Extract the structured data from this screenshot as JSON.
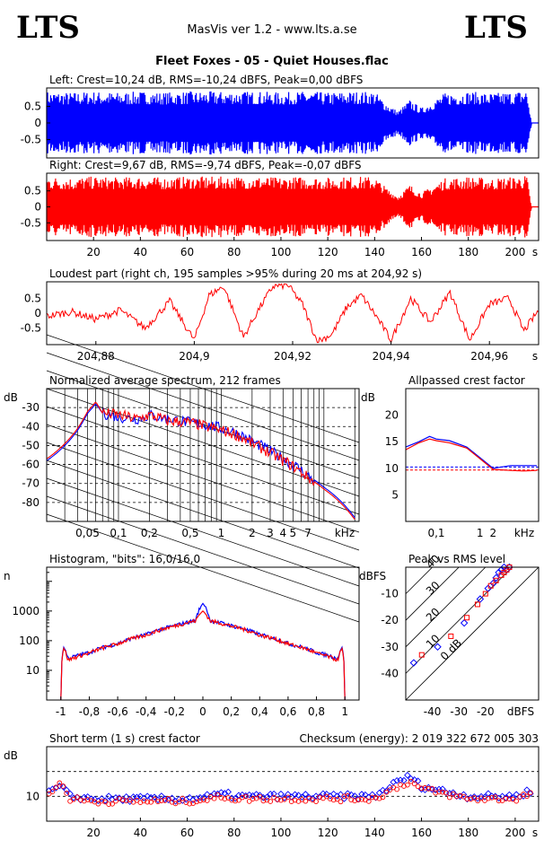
{
  "header": {
    "logo_left": "LTS",
    "logo_right": "LTS",
    "app_title": "MasVis ver 1.2 - www.lts.a.se",
    "track_title": "Fleet Foxes - 05 - Quiet Houses.flac"
  },
  "colors": {
    "left": "#0000ff",
    "right": "#ff0000",
    "axis": "#000000"
  },
  "chart_data": [
    {
      "type": "area",
      "name": "waveform-left",
      "title": "Left: Crest=10,24 dB, RMS=-10,24 dBFS, Peak=0,00 dBFS",
      "ylim": [
        -1,
        1
      ],
      "yticks": [
        "0.5",
        "0",
        "-0.5"
      ],
      "xlim": [
        0,
        210
      ],
      "envelope_time_s": [
        0,
        10,
        20,
        30,
        40,
        50,
        60,
        70,
        80,
        90,
        100,
        110,
        120,
        130,
        140,
        145,
        150,
        155,
        160,
        170,
        180,
        190,
        200,
        205,
        207
      ],
      "envelope_peak": [
        0.95,
        0.92,
        0.95,
        0.92,
        0.95,
        0.92,
        0.95,
        0.95,
        0.95,
        0.95,
        0.92,
        0.95,
        0.92,
        0.95,
        0.95,
        0.6,
        0.35,
        0.7,
        0.45,
        0.9,
        0.95,
        0.9,
        0.95,
        1.0,
        0.0
      ]
    },
    {
      "type": "area",
      "name": "waveform-right",
      "title": "Right: Crest=9,67 dB, RMS=-9,74 dBFS, Peak=-0,07 dBFS",
      "ylim": [
        -1,
        1
      ],
      "yticks": [
        "0.5",
        "0",
        "-0.5"
      ],
      "xlim": [
        0,
        210
      ],
      "xticks": [
        "20",
        "40",
        "60",
        "80",
        "100",
        "120",
        "140",
        "160",
        "180",
        "200"
      ],
      "xunit": "s",
      "envelope_time_s": [
        0,
        10,
        20,
        30,
        40,
        50,
        60,
        70,
        80,
        90,
        100,
        110,
        120,
        130,
        140,
        145,
        150,
        155,
        160,
        170,
        180,
        190,
        200,
        205,
        207
      ],
      "envelope_peak": [
        0.95,
        0.92,
        0.95,
        0.92,
        0.95,
        0.92,
        0.95,
        0.95,
        0.95,
        0.95,
        0.92,
        0.95,
        0.92,
        0.95,
        0.95,
        0.6,
        0.35,
        0.7,
        0.45,
        0.9,
        0.95,
        0.9,
        0.95,
        0.99,
        0.0
      ]
    },
    {
      "type": "line",
      "name": "loudest-part",
      "title": "Loudest part (right ch, 195 samples >95% during 20 ms at 204,92 s)",
      "ylim": [
        -1,
        1
      ],
      "yticks": [
        "0.5",
        "0",
        "-0.5"
      ],
      "xlim": [
        204.87,
        204.97
      ],
      "xticks": [
        "204,88",
        "204,9",
        "204,92",
        "204,94",
        "204,96"
      ],
      "xunit": "s",
      "x": [
        204.87,
        204.875,
        204.88,
        204.885,
        204.89,
        204.895,
        204.9,
        204.903,
        204.906,
        204.91,
        204.913,
        204.916,
        204.919,
        204.922,
        204.925,
        204.928,
        204.931,
        204.934,
        204.937,
        204.94,
        204.944,
        204.948,
        204.952,
        204.956,
        204.96,
        204.964,
        204.967,
        204.97
      ],
      "y": [
        -0.1,
        0.05,
        -0.2,
        0.1,
        -0.5,
        0.4,
        -0.9,
        0.6,
        0.9,
        -0.8,
        0.1,
        0.9,
        0.95,
        0.3,
        -0.95,
        -0.7,
        0.2,
        0.6,
        -0.1,
        -0.9,
        0.5,
        -0.3,
        0.7,
        -0.9,
        0.3,
        0.5,
        -0.6,
        0.1
      ]
    },
    {
      "type": "line",
      "name": "spectrum",
      "title": "Normalized average spectrum, 212 frames",
      "ylabel": "dB",
      "ylim": [
        -90,
        -20
      ],
      "yticks": [
        "-30",
        "-40",
        "-50",
        "-60",
        "-70",
        "-80"
      ],
      "xscale": "log",
      "xlim_khz": [
        0.02,
        22
      ],
      "xticks": [
        "0,05",
        "0,1",
        "0,2",
        "0,5",
        "1",
        "2",
        "3",
        "4",
        "5",
        "7"
      ],
      "xunit": "kHz",
      "freq_khz": [
        0.02,
        0.03,
        0.04,
        0.05,
        0.06,
        0.07,
        0.1,
        0.15,
        0.2,
        0.3,
        0.5,
        0.7,
        1,
        1.5,
        2,
        3,
        4,
        5,
        7,
        10,
        15,
        20
      ],
      "series": [
        {
          "name": "",
          "channel": "left",
          "values": [
            -58,
            -50,
            -42,
            -33,
            -28,
            -33,
            -35,
            -36,
            -34,
            -36,
            -38,
            -39,
            -41,
            -44,
            -48,
            -53,
            -57,
            -60,
            -66,
            -72,
            -80,
            -88
          ]
        },
        {
          "name": "",
          "channel": "right",
          "values": [
            -57,
            -49,
            -41,
            -32,
            -27,
            -33,
            -34,
            -36,
            -34,
            -37,
            -38,
            -40,
            -42,
            -45,
            -49,
            -54,
            -58,
            -61,
            -67,
            -73,
            -81,
            -89
          ]
        }
      ]
    },
    {
      "type": "line",
      "name": "allpassed-crest",
      "title": "Allpassed crest factor",
      "ylabel": "dB",
      "ylim": [
        0,
        25
      ],
      "yticks": [
        "20",
        "15",
        "10",
        "5"
      ],
      "xscale": "log",
      "xlim_khz": [
        0.02,
        22
      ],
      "xticks": [
        "0,1",
        "1",
        "2"
      ],
      "xunit": "kHz",
      "reference": {
        "left": 10.24,
        "right": 9.67
      },
      "freq_khz": [
        0.02,
        0.04,
        0.07,
        0.1,
        0.2,
        0.5,
        1,
        2,
        5,
        10,
        20
      ],
      "series": [
        {
          "name": "",
          "channel": "left",
          "values": [
            14,
            15,
            16,
            15.5,
            15.2,
            14,
            12,
            10,
            10.5,
            10.5,
            10.5
          ]
        },
        {
          "name": "",
          "channel": "right",
          "values": [
            13.5,
            14.8,
            15.5,
            15.2,
            14.8,
            13.8,
            11.8,
            9.8,
            9.6,
            9.5,
            9.6
          ]
        }
      ]
    },
    {
      "type": "line",
      "name": "histogram",
      "title": "Histogram, \"bits\": 16,0/16,0",
      "ylabel": "n",
      "yscale": "log",
      "ylim": [
        1,
        30000
      ],
      "yticks": [
        "1000",
        "100",
        "10"
      ],
      "xlim": [
        -1.1,
        1.1
      ],
      "xticks": [
        "-1",
        "-0,8",
        "-0,6",
        "-0,4",
        "-0,2",
        "0",
        "0,2",
        "0,4",
        "0,6",
        "0,8",
        "1"
      ],
      "x": [
        -1.0,
        -0.98,
        -0.95,
        -0.8,
        -0.6,
        -0.4,
        -0.2,
        -0.05,
        0,
        0.05,
        0.2,
        0.4,
        0.6,
        0.8,
        0.95,
        0.98,
        1.0
      ],
      "series": [
        {
          "name": "",
          "channel": "left",
          "values": [
            1,
            60,
            25,
            40,
            80,
            160,
            320,
            480,
            1800,
            480,
            320,
            160,
            80,
            40,
            25,
            60,
            1
          ]
        },
        {
          "name": "",
          "channel": "right",
          "values": [
            1,
            55,
            22,
            38,
            78,
            155,
            310,
            470,
            1000,
            470,
            310,
            155,
            78,
            38,
            22,
            55,
            1
          ]
        }
      ]
    },
    {
      "type": "scatter",
      "name": "peak-vs-rms",
      "title": "Peak vs RMS level",
      "ylabel": "dBFS",
      "xlabel": "dBFS",
      "xlim": [
        -50,
        0
      ],
      "ylim": [
        -50,
        0
      ],
      "xticks": [
        "-40",
        "-30",
        "-20"
      ],
      "yticks": [
        "-10",
        "-20",
        "-30",
        "-40"
      ],
      "crest_lines_db": [
        "0 dB",
        "10",
        "20",
        "30",
        "40"
      ],
      "series": [
        {
          "name": "",
          "channel": "left",
          "x": [
            -47,
            -38,
            -28,
            -22,
            -19,
            -17,
            -16,
            -15,
            -14,
            -13,
            -12,
            -11
          ],
          "y": [
            -36,
            -30,
            -21,
            -12,
            -8,
            -6,
            -4,
            -2,
            -1,
            0,
            -1,
            0
          ]
        },
        {
          "name": "",
          "channel": "right",
          "x": [
            -44,
            -33,
            -27,
            -23,
            -20,
            -18,
            -16,
            -14,
            -13,
            -12,
            -11
          ],
          "y": [
            -33,
            -26,
            -19,
            -14,
            -10,
            -7,
            -5,
            -3,
            -2,
            -1,
            0
          ]
        }
      ]
    },
    {
      "type": "scatter",
      "name": "short-term-crest",
      "title": "Short term (1 s) crest factor",
      "ylabel": "dB",
      "ylim": [
        5,
        20
      ],
      "yticks": [
        "10"
      ],
      "xlim": [
        0,
        210
      ],
      "xticks": [
        "20",
        "40",
        "60",
        "80",
        "100",
        "120",
        "140",
        "160",
        "180",
        "200"
      ],
      "xunit": "s",
      "series": [
        {
          "name": "",
          "channel": "left",
          "x": [
            2,
            6,
            10,
            20,
            40,
            60,
            70,
            76,
            80,
            100,
            120,
            140,
            150,
            155,
            160,
            170,
            180,
            200,
            206
          ],
          "y": [
            11,
            12,
            10,
            9.5,
            9.5,
            9.5,
            10,
            10.5,
            10,
            10,
            10,
            10,
            13,
            14,
            12,
            11,
            10,
            10,
            11
          ]
        },
        {
          "name": "",
          "channel": "right",
          "x": [
            2,
            6,
            10,
            20,
            40,
            60,
            70,
            76,
            80,
            100,
            120,
            140,
            150,
            155,
            160,
            170,
            180,
            200,
            206
          ],
          "y": [
            10.5,
            13,
            9.5,
            9,
            9,
            9,
            9.5,
            10,
            9.5,
            9.5,
            9.5,
            9.5,
            12,
            13,
            11.5,
            10.5,
            9.5,
            9.5,
            10.5
          ]
        }
      ],
      "checksum": "Checksum (energy):  2 019 322 672 005 303"
    }
  ]
}
